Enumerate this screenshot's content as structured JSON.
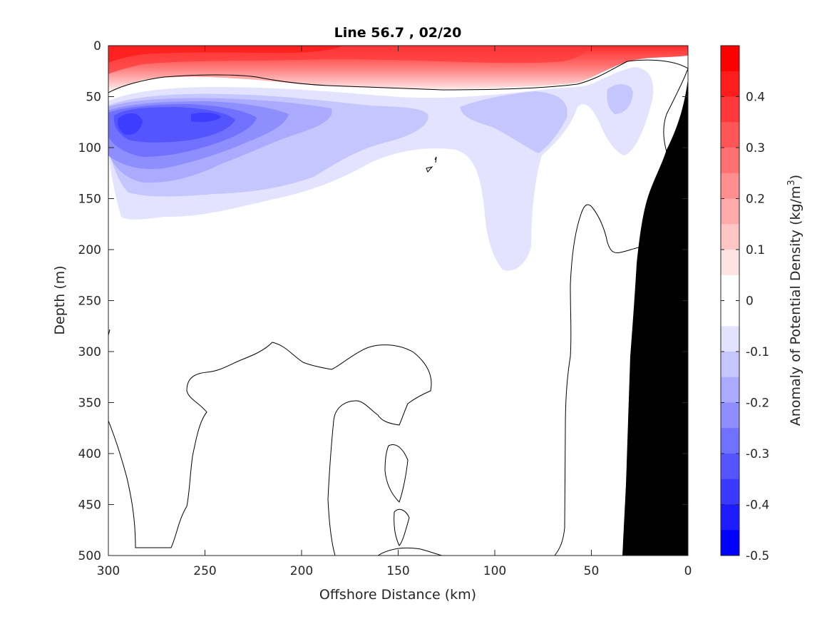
{
  "chart_data": {
    "type": "contour",
    "title": "Line 56.7 , 02/20",
    "xlabel": "Offshore Distance (km)",
    "ylabel": "Depth (m)",
    "xlim": [
      300,
      0
    ],
    "ylim": [
      0,
      500
    ],
    "x_ticks": [
      "300",
      "250",
      "200",
      "150",
      "100",
      "50",
      "0"
    ],
    "y_ticks": [
      "0",
      "50",
      "100",
      "150",
      "200",
      "250",
      "300",
      "350",
      "400",
      "450",
      "500"
    ],
    "colorbar": {
      "label": "Anomaly of Potential Density",
      "unit_prefix": "(kg/m",
      "unit_exponent": "3",
      "unit_suffix": ")",
      "range": [
        -0.5,
        0.5
      ],
      "tick_labels": [
        "0.4",
        "0.3",
        "0.2",
        "0.1",
        "0",
        "-0.1",
        "-0.2",
        "-0.3",
        "-0.4",
        "-0.5"
      ],
      "colors": [
        "#ff0000",
        "#ff1c1c",
        "#ff3939",
        "#ff5555",
        "#ff7171",
        "#ff8e8e",
        "#ffaaaa",
        "#ffc6c6",
        "#ffe3e3",
        "#ffffff",
        "#ffffff",
        "#e3e3ff",
        "#c6c6ff",
        "#aaaaff",
        "#8e8eff",
        "#7171ff",
        "#5555ff",
        "#3939ff",
        "#1c1cff",
        "#0000ff"
      ]
    },
    "positive_anomaly_layer": {
      "color": "#ff3030",
      "depth_range_m": [
        0,
        40
      ],
      "offshore_range_km": [
        300,
        40
      ]
    },
    "negative_anomaly_layer": {
      "color": "#5a5aff",
      "depth_range_m": [
        50,
        225
      ],
      "minimum_value": -0.35
    },
    "bathymetry_color": "#000000"
  }
}
